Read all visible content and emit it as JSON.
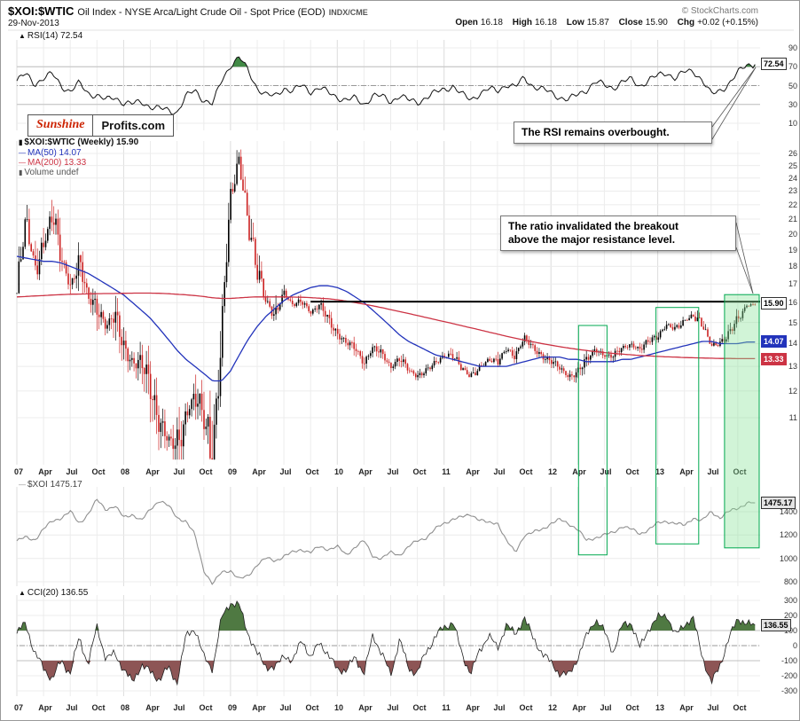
{
  "header": {
    "symbol": "$XOI:$WTIC",
    "description": "Oil Index - NYSE Arca/Light Crude Oil - Spot Price (EOD)",
    "exchange": "INDX/CME",
    "copyright": "© StockCharts.com",
    "date": "29-Nov-2013",
    "quote": {
      "open_label": "Open",
      "open": "16.18",
      "high_label": "High",
      "high": "16.18",
      "low_label": "Low",
      "low": "15.87",
      "close_label": "Close",
      "close": "15.90",
      "chg_label": "Chg",
      "chg": "+0.02 (+0.15%)"
    }
  },
  "logo": {
    "part1": "Sunshine",
    "part2": "Profits.com"
  },
  "annotations": {
    "rsi_note": "The RSI remains overbought.",
    "breakout_note_line1": "The ratio invalidated the breakout",
    "breakout_note_line2": "above the major resistance level.",
    "highlights": [
      {
        "name": "consolidation-box-2012",
        "style": "outline",
        "month_start": 63.1,
        "month_end": 66.3,
        "price_top": 14.85,
        "xoi_bottom": 1030
      },
      {
        "name": "consolidation-box-2013",
        "style": "outline",
        "month_start": 71.8,
        "month_end": 76.6,
        "price_top": 15.75,
        "xoi_bottom": 1125
      },
      {
        "name": "breakout-invalidation-zone",
        "style": "filled",
        "month_start": 79.5,
        "month_end": 83.4,
        "price_top": 16.42,
        "xoi_bottom": 1090
      }
    ]
  },
  "panels": {
    "rsi": {
      "legend": "RSI(14) 72.54",
      "last": "72.54",
      "ticks": [
        90,
        70,
        50,
        30,
        10
      ]
    },
    "main": {
      "legend_price": "$XOI:$WTIC (Weekly) 15.90",
      "legend_ma50": "MA(50) 14.07",
      "legend_ma200": "MA(200) 13.33",
      "legend_volume": "Volume undef",
      "last_price": "15.90",
      "last_ma50": "14.07",
      "last_ma200": "13.33",
      "ticks": [
        26,
        25,
        24,
        23,
        22,
        21,
        20,
        19,
        18,
        17,
        16,
        15,
        14,
        13,
        12,
        11
      ]
    },
    "xoi": {
      "legend": "$XOI 1475.17",
      "last": "1475.17",
      "ticks": [
        1400,
        1200,
        1000,
        800
      ]
    },
    "cci": {
      "legend": "CCI(20) 136.55",
      "last": "136.55",
      "ticks": [
        300,
        200,
        100,
        0,
        -100,
        -200,
        -300
      ]
    }
  },
  "xaxis": {
    "labels": [
      "07",
      "Apr",
      "Jul",
      "Oct",
      "08",
      "Apr",
      "Jul",
      "Oct",
      "09",
      "Apr",
      "Jul",
      "Oct",
      "10",
      "Apr",
      "Jul",
      "Oct",
      "11",
      "Apr",
      "Jul",
      "Oct",
      "12",
      "Apr",
      "Jul",
      "Oct",
      "13",
      "Apr",
      "Jul",
      "Oct"
    ],
    "months": [
      0,
      3,
      6,
      9,
      12,
      15,
      18,
      21,
      24,
      27,
      30,
      33,
      36,
      39,
      42,
      45,
      48,
      51,
      54,
      57,
      60,
      63,
      66,
      69,
      72,
      75,
      78,
      81
    ]
  },
  "colors": {
    "up": "#000000",
    "down": "#cc2222",
    "ma50": "#2233bb",
    "ma200": "#cc3344",
    "rsi_line": "#111111",
    "rsi_fill": "#2e7d32",
    "xoi_line": "#909090",
    "cci_line": "#222222",
    "cci_fill_up": "#4f7942",
    "cci_fill_down": "#8d5555",
    "grid": "#ececec",
    "grid_year": "#dcdcdc",
    "guide": "#c0c0c0",
    "dash": "#999999",
    "resistance": "#000000",
    "highlight_outline": "#00a84f",
    "highlight_fill": "rgba(135,225,150,0.38)"
  },
  "chart_data": [
    {
      "type": "line",
      "panel": "rsi",
      "name": "RSI(14)",
      "last": 72.54,
      "ylim": [
        0,
        100
      ],
      "overbought": 70,
      "midline": 50,
      "oversold": 30,
      "x_start": "Jan 2007",
      "x_end": "Nov 2013",
      "x_resolution": "monthly-anchors",
      "values": [
        55,
        62,
        52,
        58,
        62,
        50,
        44,
        52,
        42,
        40,
        34,
        38,
        32,
        30,
        33,
        28,
        25,
        24,
        22,
        38,
        45,
        35,
        30,
        55,
        72,
        80,
        65,
        48,
        40,
        38,
        48,
        44,
        50,
        44,
        48,
        42,
        38,
        35,
        36,
        30,
        40,
        38,
        33,
        40,
        34,
        32,
        38,
        42,
        46,
        50,
        40,
        35,
        42,
        46,
        44,
        52,
        48,
        58,
        50,
        46,
        42,
        38,
        35,
        40,
        46,
        54,
        50,
        48,
        54,
        56,
        50,
        56,
        60,
        64,
        58,
        64,
        66,
        56,
        40,
        45,
        52,
        63,
        72.54
      ]
    },
    {
      "type": "candlestick",
      "panel": "main",
      "name": "$XOI:$WTIC (Weekly)",
      "last": 15.9,
      "scale": "log",
      "ylim": [
        9.6,
        27
      ],
      "resistance_level": 16.05,
      "resistance_start_month": 33,
      "monthly_close": [
        16.5,
        20.5,
        18,
        19.5,
        21,
        18.5,
        17,
        18,
        16.2,
        16,
        14.8,
        15.2,
        14,
        13.2,
        13,
        12.2,
        11,
        10.2,
        9.9,
        11.2,
        11.8,
        10.8,
        9.8,
        14.5,
        22,
        25.5,
        21,
        17.5,
        16,
        15.5,
        16.5,
        15.8,
        16.2,
        15.5,
        15.8,
        15.2,
        14.5,
        14,
        13.8,
        13.2,
        13.8,
        13.5,
        13,
        13.4,
        12.8,
        12.6,
        12.9,
        13.1,
        13.4,
        13.6,
        12.9,
        12.5,
        13,
        13.3,
        13.1,
        13.8,
        13.5,
        14.2,
        13.8,
        13.5,
        13.2,
        12.9,
        12.6,
        12.8,
        13.2,
        13.8,
        13.5,
        13.4,
        13.8,
        14,
        13.7,
        14.1,
        14.4,
        14.9,
        14.6,
        15.1,
        15.4,
        14.8,
        13.9,
        14.1,
        14.4,
        15.1,
        15.9
      ],
      "series": [
        {
          "name": "MA(50)",
          "last": 14.07,
          "values": [
            18.6,
            18.5,
            18.4,
            18.3,
            18.3,
            18.2,
            18,
            17.8,
            17.6,
            17.3,
            17,
            16.7,
            16.4,
            16,
            15.6,
            15.2,
            14.7,
            14.2,
            13.7,
            13.3,
            13,
            12.7,
            12.4,
            12.4,
            12.8,
            13.5,
            14.2,
            14.8,
            15.3,
            15.7,
            16.1,
            16.4,
            16.6,
            16.8,
            16.9,
            16.9,
            16.8,
            16.6,
            16.3,
            16,
            15.6,
            15.2,
            14.8,
            14.4,
            14.1,
            13.9,
            13.7,
            13.5,
            13.4,
            13.3,
            13.2,
            13.1,
            13,
            13,
            13,
            13,
            13.1,
            13.2,
            13.3,
            13.4,
            13.4,
            13.4,
            13.3,
            13.3,
            13.2,
            13.2,
            13.2,
            13.2,
            13.3,
            13.3,
            13.4,
            13.5,
            13.6,
            13.7,
            13.8,
            13.9,
            14,
            14.1,
            14.1,
            14,
            14,
            14,
            14.07
          ]
        },
        {
          "name": "MA(200)",
          "last": 13.33,
          "values": [
            16.3,
            16.32,
            16.35,
            16.37,
            16.4,
            16.42,
            16.44,
            16.45,
            16.46,
            16.47,
            16.48,
            16.48,
            16.49,
            16.5,
            16.5,
            16.5,
            16.49,
            16.47,
            16.44,
            16.41,
            16.37,
            16.32,
            16.25,
            16.22,
            16.22,
            16.25,
            16.28,
            16.3,
            16.3,
            16.3,
            16.3,
            16.29,
            16.28,
            16.26,
            16.23,
            16.2,
            16.15,
            16.08,
            16,
            15.92,
            15.83,
            15.74,
            15.64,
            15.54,
            15.44,
            15.34,
            15.24,
            15.14,
            15.04,
            14.94,
            14.84,
            14.74,
            14.64,
            14.54,
            14.44,
            14.34,
            14.25,
            14.16,
            14.08,
            14,
            13.93,
            13.86,
            13.8,
            13.74,
            13.69,
            13.64,
            13.6,
            13.56,
            13.53,
            13.5,
            13.47,
            13.45,
            13.43,
            13.41,
            13.4,
            13.38,
            13.37,
            13.36,
            13.35,
            13.34,
            13.34,
            13.33,
            13.33
          ]
        }
      ]
    },
    {
      "type": "line",
      "panel": "xoi",
      "name": "$XOI",
      "last": 1475.17,
      "ylim": [
        760,
        1640
      ],
      "values": [
        1150,
        1180,
        1160,
        1250,
        1320,
        1350,
        1400,
        1300,
        1380,
        1500,
        1420,
        1450,
        1350,
        1380,
        1320,
        1420,
        1500,
        1450,
        1350,
        1320,
        1200,
        900,
        780,
        880,
        900,
        820,
        850,
        950,
        1000,
        980,
        1020,
        1050,
        1080,
        1050,
        1100,
        1080,
        1100,
        1030,
        1100,
        1150,
        1020,
        1000,
        1050,
        1030,
        1100,
        1150,
        1180,
        1250,
        1300,
        1340,
        1350,
        1380,
        1330,
        1300,
        1310,
        1150,
        1050,
        1200,
        1220,
        1250,
        1300,
        1330,
        1300,
        1250,
        1150,
        1180,
        1200,
        1220,
        1280,
        1250,
        1210,
        1250,
        1300,
        1320,
        1300,
        1280,
        1350,
        1320,
        1400,
        1350,
        1400,
        1430,
        1475.17
      ]
    },
    {
      "type": "line",
      "panel": "cci",
      "name": "CCI(20)",
      "last": 136.55,
      "ylim": [
        -330,
        330
      ],
      "guides": [
        100,
        0,
        -100
      ],
      "values": [
        80,
        150,
        -50,
        -150,
        -220,
        -100,
        -180,
        50,
        -120,
        120,
        -80,
        -60,
        -150,
        -250,
        -120,
        -180,
        -220,
        -150,
        -240,
        60,
        120,
        -80,
        -150,
        180,
        290,
        260,
        80,
        -60,
        -130,
        -160,
        -50,
        -120,
        60,
        -100,
        40,
        -80,
        -140,
        -180,
        -60,
        -200,
        80,
        -60,
        -190,
        40,
        -150,
        -180,
        -40,
        60,
        120,
        160,
        -60,
        -180,
        -40,
        80,
        -30,
        150,
        60,
        200,
        40,
        -40,
        -120,
        -180,
        -200,
        -80,
        60,
        180,
        90,
        -40,
        130,
        160,
        -20,
        120,
        180,
        210,
        60,
        150,
        170,
        -60,
        -260,
        -120,
        40,
        190,
        136.55
      ]
    }
  ]
}
